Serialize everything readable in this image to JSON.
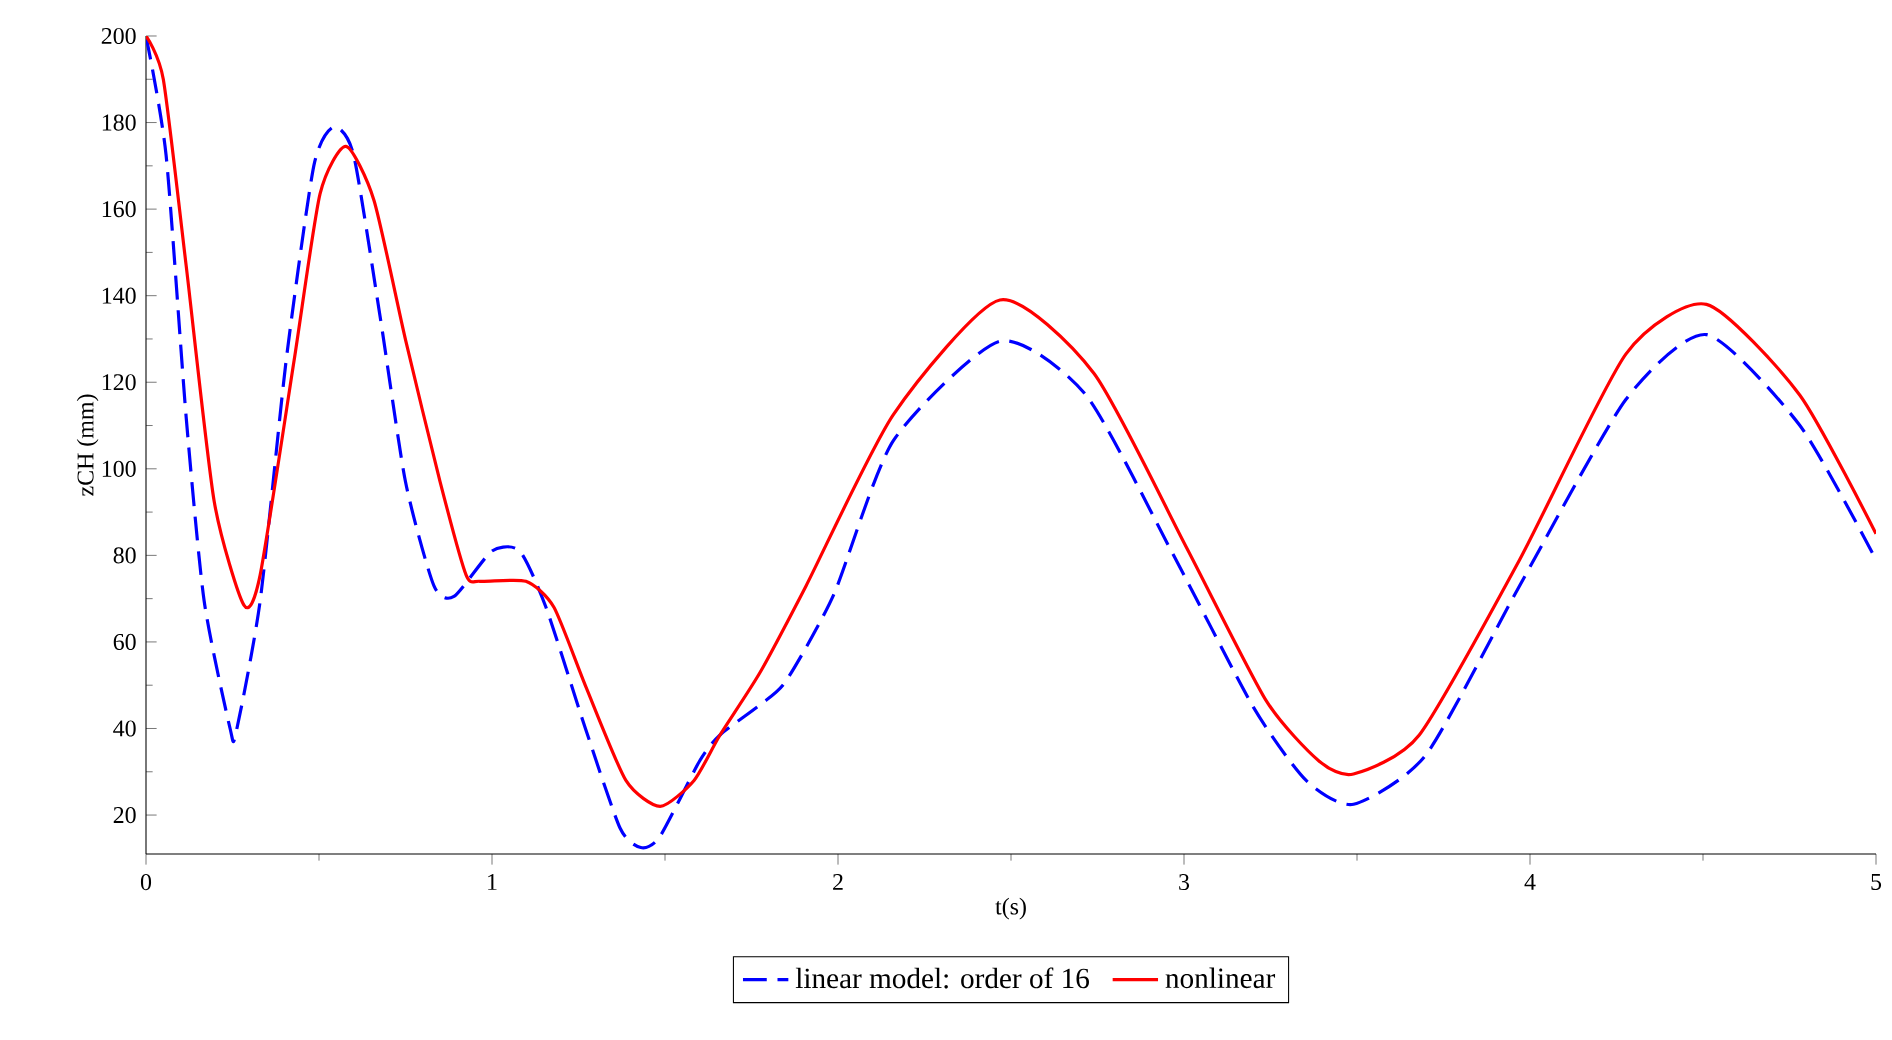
{
  "chart_data": {
    "type": "line",
    "xlabel": "t(s)",
    "ylabel": "zCH (mm)",
    "xlim": [
      0,
      5
    ],
    "xticks": [
      0,
      1,
      2,
      3,
      4,
      5
    ],
    "ylim": [
      11,
      200
    ],
    "yticks": [
      20,
      40,
      60,
      80,
      100,
      120,
      140,
      160,
      180,
      200
    ],
    "grid": false,
    "legend": "bottom",
    "marker": "none",
    "series": [
      {
        "name": "linear model: order of 16",
        "color": "#0000ff",
        "line_style": "dashed",
        "x": [
          0,
          0.058,
          0.116,
          0.168,
          0.243,
          0.26,
          0.33,
          0.405,
          0.485,
          0.543,
          0.6,
          0.676,
          0.75,
          0.832,
          0.89,
          1.0,
          1.08,
          1.156,
          1.27,
          1.37,
          1.43,
          1.485,
          1.6,
          1.659,
          1.775,
          1.85,
          1.988,
          2.16,
          2.468,
          2.717,
          2.97,
          3.2,
          3.353,
          3.49,
          3.7,
          3.97,
          4.277,
          4.51,
          4.78,
          5.0
        ],
        "values": [
          200,
          172.5,
          112,
          69.5,
          40,
          39,
          69.5,
          125,
          170,
          179,
          172.5,
          135.5,
          97,
          73,
          70.5,
          81,
          81,
          68,
          40,
          17,
          12.5,
          15,
          32.5,
          38.5,
          45.5,
          51,
          71,
          106.5,
          129.5,
          117,
          80,
          45,
          28,
          22.5,
          34,
          73,
          116,
          131,
          110,
          79
        ]
      },
      {
        "name": "nonlinear",
        "color": "#ff0000",
        "line_style": "solid",
        "x": [
          0,
          0.05,
          0.116,
          0.197,
          0.283,
          0.33,
          0.428,
          0.503,
          0.578,
          0.659,
          0.751,
          0.85,
          0.925,
          0.965,
          1.098,
          1.179,
          1.272,
          1.387,
          1.486,
          1.584,
          1.659,
          1.775,
          1.908,
          2.16,
          2.468,
          2.74,
          3.006,
          3.237,
          3.39,
          3.49,
          3.68,
          3.97,
          4.277,
          4.51,
          4.78,
          5.0
        ],
        "values": [
          200,
          190,
          147,
          92.5,
          68.5,
          75.5,
          125,
          163.5,
          174.5,
          162,
          129.5,
          97,
          75.5,
          74,
          74,
          68,
          49.5,
          28,
          22,
          28,
          38.5,
          53,
          73,
          112.5,
          139,
          122,
          82,
          46.5,
          32.5,
          29.5,
          38.5,
          79,
          126.5,
          138,
          117,
          85
        ]
      }
    ]
  }
}
